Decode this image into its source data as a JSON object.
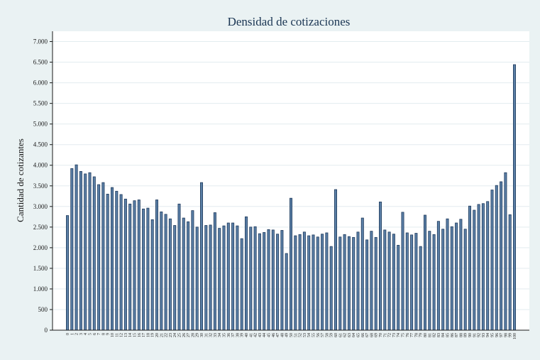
{
  "chart_data": {
    "type": "bar",
    "title": "Densidad de cotizaciones",
    "xlabel": "",
    "ylabel": "Cantidad de cotizantes",
    "ylim": [
      0,
      7250
    ],
    "yticks": [
      0,
      500,
      1000,
      1500,
      2000,
      2500,
      3000,
      3500,
      4000,
      4500,
      5000,
      5500,
      6000,
      6500,
      7000
    ],
    "ytick_labels": [
      "0",
      "500",
      "1.000",
      "1.500",
      "2.000",
      "2.500",
      "3.000",
      "3.500",
      "4.000",
      "4.500",
      "5.000",
      "5.500",
      "6.000",
      "6.500",
      "7.000"
    ],
    "grid": true,
    "legend": "none",
    "bar_color": "#5b7fa6",
    "categories": [
      "0",
      "1",
      "2",
      "3",
      "4",
      "5",
      "6",
      "7",
      "8",
      "9",
      "10",
      "11",
      "12",
      "13",
      "14",
      "15",
      "16",
      "17",
      "18",
      "19",
      "20",
      "21",
      "22",
      "23",
      "24",
      "25",
      "26",
      "27",
      "28",
      "29",
      "30",
      "31",
      "32",
      "33",
      "34",
      "35",
      "36",
      "37",
      "38",
      "39",
      "40",
      "41",
      "42",
      "43",
      "44",
      "45",
      "46",
      "47",
      "48",
      "49",
      "50",
      "51",
      "52",
      "53",
      "54",
      "55",
      "56",
      "57",
      "58",
      "59",
      "60",
      "61",
      "62",
      "63",
      "64",
      "65",
      "66",
      "67",
      "68",
      "69",
      "70",
      "71",
      "72",
      "73",
      "74",
      "75",
      "76",
      "77",
      "78",
      "79",
      "80",
      "81",
      "82",
      "83",
      "84",
      "85",
      "86",
      "87",
      "88",
      "89",
      "90",
      "91",
      "92",
      "93",
      "94",
      "95",
      "96",
      "97",
      "98",
      "99",
      "100"
    ],
    "values": [
      2780,
      3920,
      4010,
      3850,
      3790,
      3820,
      3720,
      3530,
      3580,
      3300,
      3460,
      3370,
      3290,
      3180,
      3060,
      3140,
      3160,
      2940,
      2960,
      2680,
      3160,
      2870,
      2810,
      2700,
      2540,
      3060,
      2720,
      2630,
      2900,
      2500,
      3580,
      2540,
      2550,
      2850,
      2470,
      2530,
      2600,
      2600,
      2530,
      2220,
      2750,
      2500,
      2510,
      2340,
      2370,
      2440,
      2430,
      2330,
      2420,
      1860,
      3200,
      2290,
      2320,
      2380,
      2290,
      2310,
      2260,
      2330,
      2360,
      2030,
      3410,
      2260,
      2320,
      2270,
      2250,
      2380,
      2720,
      2190,
      2400,
      2250,
      3110,
      2430,
      2380,
      2330,
      2060,
      2860,
      2360,
      2310,
      2350,
      2030,
      2790,
      2400,
      2320,
      2640,
      2450,
      2700,
      2510,
      2600,
      2690,
      2450,
      3010,
      2910,
      3050,
      3070,
      3120,
      3400,
      3510,
      3600,
      3820,
      2800,
      6440
    ]
  }
}
